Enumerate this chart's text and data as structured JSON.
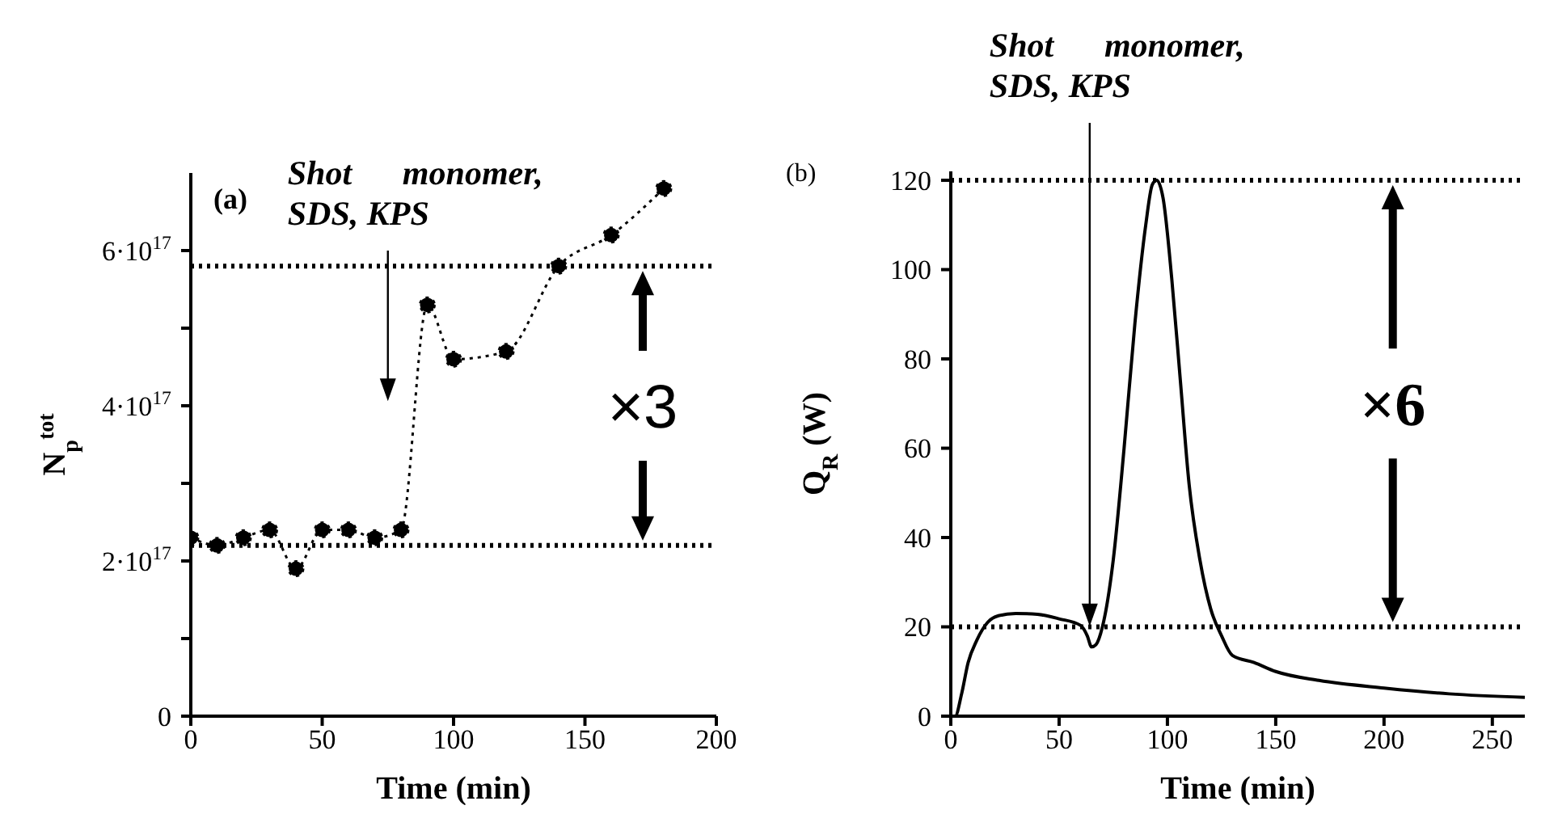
{
  "chart_data": [
    {
      "type": "line",
      "title": "(a)",
      "xlabel": "Time (min)",
      "ylabel": "N$_{p}$$^{tot}$",
      "x": [
        0,
        10,
        20,
        30,
        40,
        50,
        60,
        70,
        80,
        90,
        100,
        120,
        140,
        160,
        180
      ],
      "series": [
        {
          "color": "#000000",
          "values": [
            2.3e+17,
            2.2e+17,
            2.3e+17,
            2.4e+17,
            1.9e+17,
            2.4e+17,
            2.4e+17,
            2.3e+17,
            2.4e+17,
            5.3e+17,
            4.6e+17,
            4.7e+17,
            5.8e+17,
            6.2e+17,
            6.8e+17
          ]
        }
      ],
      "xlim": [
        0,
        200
      ],
      "xticks": [
        0,
        50,
        100,
        150,
        200
      ],
      "ylim": [
        0,
        7e+17
      ],
      "yticks": [
        0,
        {
          "value": 1e+17,
          "label": null
        },
        {
          "value": 2e+17,
          "label": "2·10$^{17}$"
        },
        {
          "value": 3e+17,
          "label": null
        },
        {
          "value": 4e+17,
          "label": "4·10$^{17}$"
        },
        {
          "value": 5e+17,
          "label": null
        },
        {
          "value": 6e+17,
          "label": "6·10$^{17}$"
        }
      ],
      "ref_lines": [
        {
          "axis": "y",
          "value": 5.8e+17,
          "color": "#000000",
          "line_style": "dotted"
        },
        {
          "axis": "y",
          "value": 2.2e+17,
          "color": "#000000",
          "line_style": "dotted"
        }
      ],
      "annotations": [
        "Shot monomer, SDS, KPS",
        "×3"
      ],
      "marker": "circle",
      "line_style": "dotted"
    },
    {
      "type": "line",
      "title": "(b)",
      "xlabel": "Time (min)",
      "ylabel": "Q$_{R}$ (W)",
      "x": [
        0,
        2,
        5,
        8,
        12,
        17,
        22,
        30,
        40,
        50,
        60,
        63,
        65,
        67,
        70,
        75,
        80,
        85,
        90,
        93,
        95,
        98,
        102,
        106,
        110,
        115,
        120,
        125,
        130,
        140,
        150,
        170,
        200,
        230,
        265
      ],
      "series": [
        {
          "color": "#000000",
          "values": [
            0,
            0,
            5,
            12,
            17,
            21,
            22.5,
            23,
            22.8,
            21.8,
            20.3,
            18,
            15.5,
            16,
            20,
            35,
            60,
            88,
            110,
            119,
            120,
            116,
            98,
            75,
            52,
            35,
            24,
            18,
            13.6,
            12,
            10,
            8,
            6.3,
            5,
            4.2
          ]
        }
      ],
      "xlim": [
        0,
        265
      ],
      "xticks": [
        0,
        50,
        100,
        150,
        200,
        250
      ],
      "ylim": [
        0,
        122
      ],
      "yticks": [
        0,
        20,
        40,
        60,
        80,
        100,
        120
      ],
      "ref_lines": [
        {
          "axis": "y",
          "value": 120,
          "color": "#000000",
          "line_style": "dotted"
        },
        {
          "axis": "y",
          "value": 20,
          "color": "#000000",
          "line_style": "dotted"
        }
      ],
      "annotations": [
        "Shot monomer, SDS, KPS",
        "×6"
      ],
      "marker": "none",
      "line_style": "solid"
    }
  ]
}
